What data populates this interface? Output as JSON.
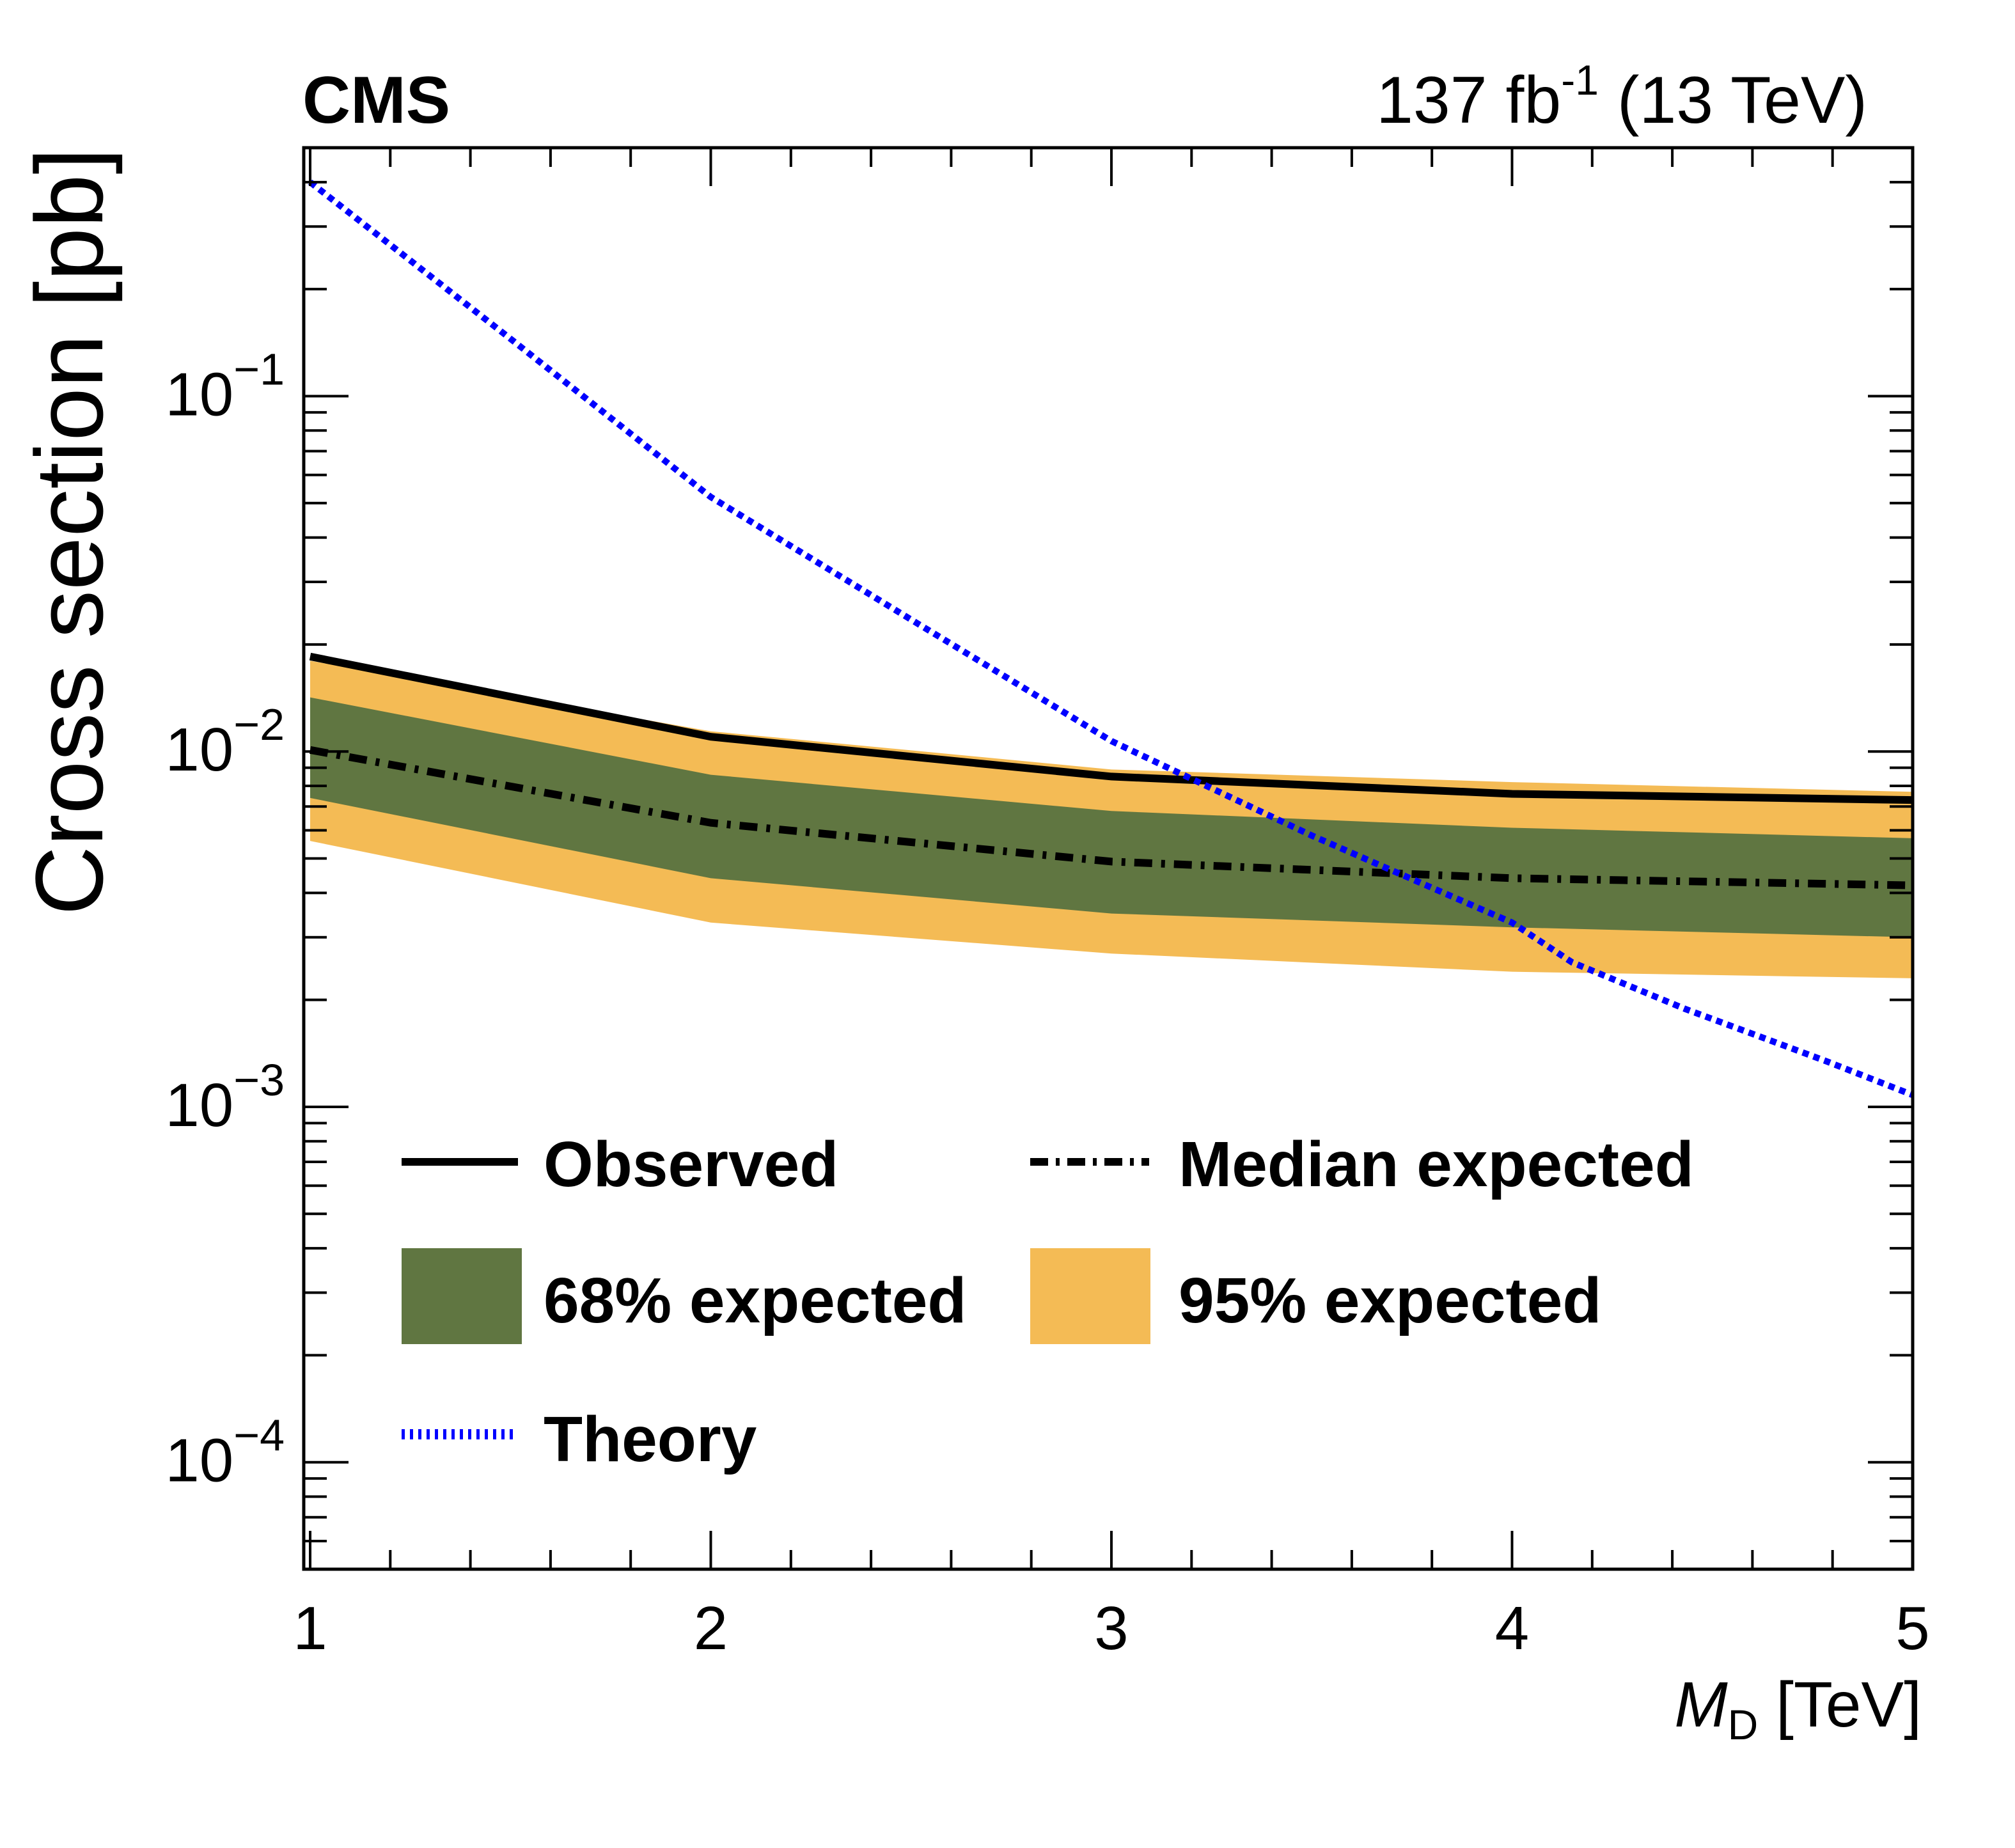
{
  "header": {
    "experiment": "CMS",
    "luminosity": "137 fb",
    "luminosity_exp": "-1",
    "energy": "(13 TeV)"
  },
  "chart_data": {
    "type": "line",
    "title": "",
    "xlabel": "M",
    "xlabel_sub": "D",
    "xlabel_unit": "[TeV]",
    "ylabel": "Cross section [pb]",
    "xscale": "linear",
    "yscale": "log",
    "xlim": [
      1,
      5
    ],
    "ylim": [
      5e-05,
      0.5
    ],
    "x_ticks": [
      1,
      2,
      3,
      4,
      5
    ],
    "x_tick_labels": [
      "1",
      "2",
      "3",
      "4",
      "5"
    ],
    "y_ticks": [
      0.1,
      0.01,
      0.001,
      0.0001
    ],
    "y_tick_labels": [
      {
        "base": "10",
        "exp": "−1"
      },
      {
        "base": "10",
        "exp": "−2"
      },
      {
        "base": "10",
        "exp": "−3"
      },
      {
        "base": "10",
        "exp": "−4"
      }
    ],
    "grid": false,
    "legend_position": "bottom-left (inside, two columns)",
    "x": [
      1,
      2,
      3,
      4,
      5
    ],
    "series": [
      {
        "name": "Observed",
        "style": "solid",
        "color": "#000000",
        "values": [
          0.0185,
          0.011,
          0.0085,
          0.0076,
          0.0073
        ]
      },
      {
        "name": "Median expected",
        "style": "dash-dot",
        "color": "#000000",
        "values": [
          0.0101,
          0.0063,
          0.0049,
          0.0044,
          0.0042
        ]
      },
      {
        "name": "68% expected",
        "style": "band",
        "color": "#607641",
        "upper": [
          0.0142,
          0.0086,
          0.0068,
          0.0061,
          0.0057
        ],
        "lower": [
          0.0074,
          0.0044,
          0.0035,
          0.0032,
          0.003
        ]
      },
      {
        "name": "95% expected",
        "style": "band",
        "color": "#F4BB55",
        "upper": [
          0.018,
          0.0114,
          0.0089,
          0.0082,
          0.0077
        ],
        "lower": [
          0.0056,
          0.0033,
          0.0027,
          0.0024,
          0.0023
        ]
      },
      {
        "name": "Theory",
        "style": "dotted",
        "color": "#0000FF",
        "x": [
          1,
          1.5,
          2,
          2.5,
          3,
          3.5,
          4,
          4.15,
          4.43,
          4.78,
          5
        ],
        "values": [
          0.4,
          0.145,
          0.052,
          0.0235,
          0.0107,
          0.0058,
          0.0033,
          0.00255,
          0.00189,
          0.00135,
          0.00108
        ]
      }
    ]
  },
  "legend": {
    "observed": "Observed",
    "median": "Median expected",
    "band68": "68% expected",
    "band95": "95% expected",
    "theory": "Theory"
  }
}
